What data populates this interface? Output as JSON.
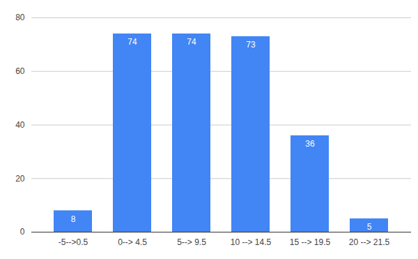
{
  "chart_data": {
    "type": "bar",
    "categories": [
      "-5-->0.5",
      "0--> 4.5",
      "5--> 9.5",
      "10 --> 14.5",
      "15 --> 19.5",
      "20 --> 21.5"
    ],
    "values": [
      8,
      74,
      74,
      73,
      36,
      5
    ],
    "color": "#4285f4",
    "ylim": [
      0,
      80
    ],
    "yticks": [
      0,
      20,
      40,
      60,
      80
    ],
    "grid": true,
    "data_labels": true
  }
}
